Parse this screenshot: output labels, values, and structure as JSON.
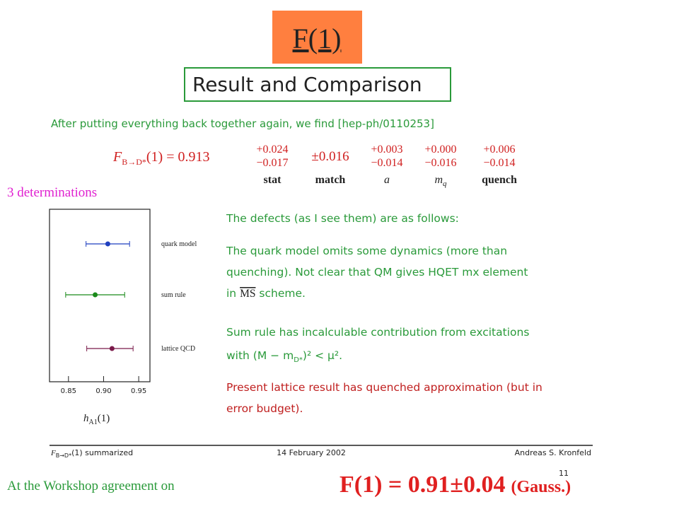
{
  "slide": {
    "title": "F(1)",
    "box_heading": "Result and Comparison",
    "intro": "After putting everything back together again, we find [hep-ph/0110253]",
    "formula": {
      "symbol": "F",
      "subscript": "B→D*",
      "rest": "(1) = 0.913",
      "columns": [
        {
          "upper": "+0.024",
          "lower": "−0.017",
          "label": "stat"
        },
        {
          "single": "±0.016",
          "label": "match"
        },
        {
          "upper": "+0.003",
          "lower": "−0.014",
          "label": "a"
        },
        {
          "upper": "+0.000",
          "lower": "−0.016",
          "label": "m",
          "label_sub": "q"
        },
        {
          "upper": "+0.006",
          "lower": "−0.014",
          "label": "quench"
        }
      ]
    },
    "side_note": "3 determinations",
    "plot": {
      "xlim": [
        0.823,
        0.966
      ],
      "xticks": [
        0.85,
        {
          "value": 0.9,
          "label": "0.90"
        },
        0.95
      ],
      "xlabel": {
        "main": "h",
        "sub": "A1",
        "rest": "(1)"
      },
      "points": [
        {
          "name": "quark model",
          "value": 0.906,
          "err_low": 0.031,
          "err_high": 0.031,
          "color": "#1f3fbf"
        },
        {
          "name": "sum rule",
          "value": 0.888,
          "err_low": 0.042,
          "err_high": 0.042,
          "color": "#1a8a1a"
        },
        {
          "name": "lattice QCD",
          "value": 0.912,
          "err_low": 0.036,
          "err_high": 0.03,
          "color": "#7a1a4a"
        }
      ]
    },
    "paragraphs": [
      {
        "lines": [
          "The defects (as I see them) are as follows:"
        ]
      },
      {
        "lines": [
          "The quark model omits some dynamics (more than",
          "quenching).  Not clear that QM gives HQET mx element"
        ],
        "last": {
          "pre": "in ",
          "over": "MS",
          "post": " scheme."
        }
      },
      {
        "lines": [
          "Sum rule has incalculable contribution from excitations"
        ],
        "math": {
          "pre": "with (M − m",
          "sub": "D*",
          "post": ")² < μ²."
        }
      },
      {
        "lines": [
          "Present lattice result has quenched approximation (but in",
          "error budget)."
        ]
      }
    ],
    "footer": {
      "left_symbol": "F",
      "left_sub": "B→D*",
      "left_rest": "(1) summarized",
      "date": "14 February 2002",
      "author": "Andreas S. Kronfeld",
      "page": "11"
    },
    "bottom_left": "At the Workshop agreement on",
    "bottom_result": "F(1) = 0.91±0.04",
    "bottom_note": "(Gauss.)"
  }
}
